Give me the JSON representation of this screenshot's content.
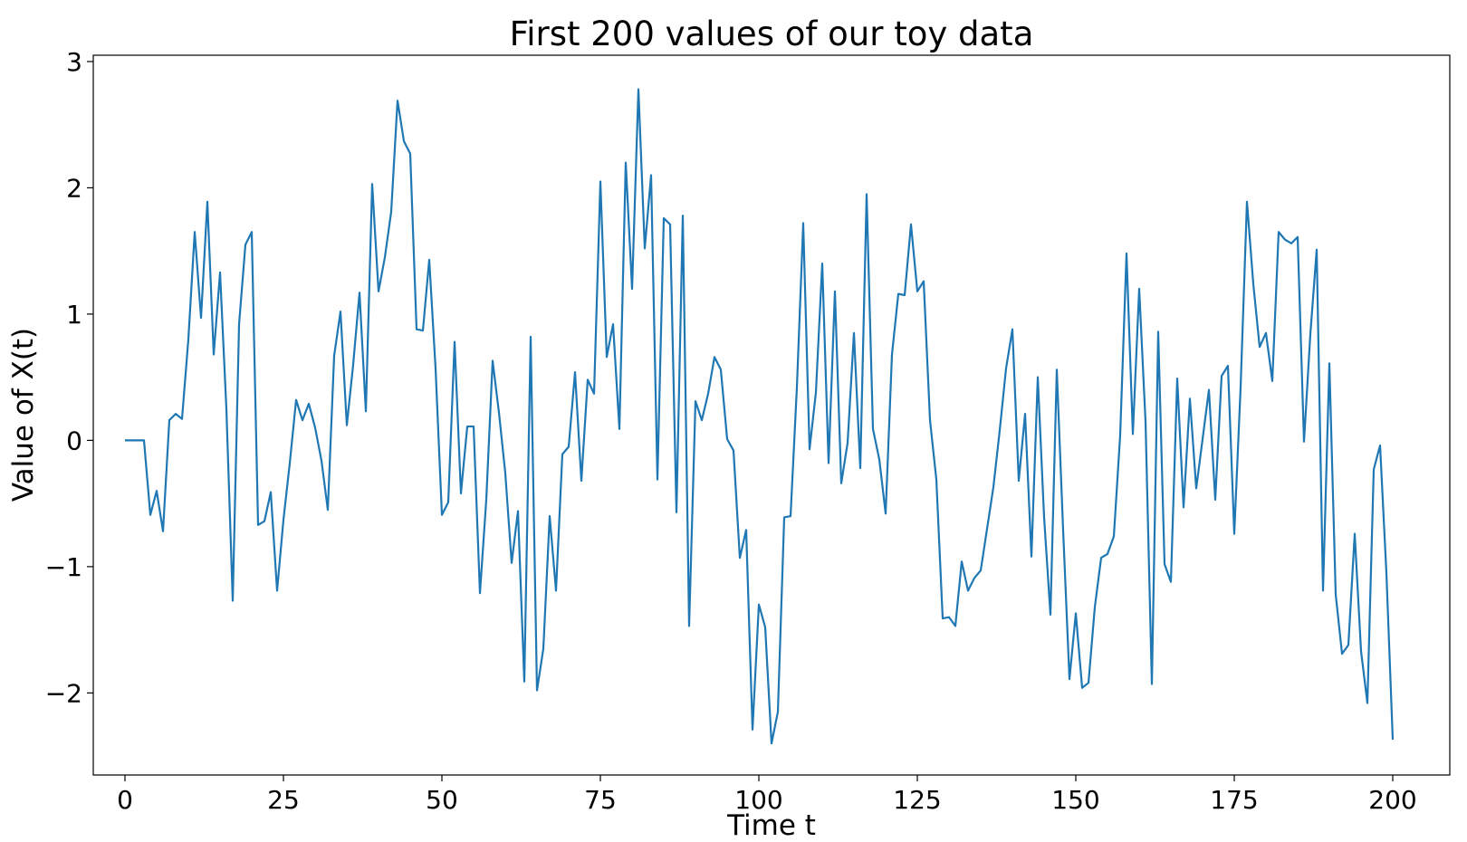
{
  "chart_data": {
    "type": "line",
    "title": "First 200 values of our toy data",
    "xlabel": "Time t",
    "ylabel": "Value of X(t)",
    "xlim": [
      -5,
      209
    ],
    "ylim": [
      -2.65,
      3.05
    ],
    "x_ticks": [
      {
        "value": 0,
        "label": "0"
      },
      {
        "value": 25,
        "label": "25"
      },
      {
        "value": 50,
        "label": "50"
      },
      {
        "value": 75,
        "label": "75"
      },
      {
        "value": 100,
        "label": "100"
      },
      {
        "value": 125,
        "label": "125"
      },
      {
        "value": 150,
        "label": "150"
      },
      {
        "value": 175,
        "label": "175"
      },
      {
        "value": 200,
        "label": "200"
      }
    ],
    "y_ticks": [
      {
        "value": -2,
        "label": "−2"
      },
      {
        "value": -1,
        "label": "−1"
      },
      {
        "value": 0,
        "label": "0"
      },
      {
        "value": 1,
        "label": "1"
      },
      {
        "value": 2,
        "label": "2"
      },
      {
        "value": 3,
        "label": "3"
      }
    ],
    "grid": false,
    "color": "#1f77b4",
    "series": [
      {
        "x_start": 0,
        "x_step": 1,
        "values": [
          0,
          0,
          0,
          0,
          -0.59,
          -0.4,
          -0.72,
          0.16,
          0.21,
          0.17,
          0.8,
          1.65,
          0.97,
          1.89,
          0.68,
          1.33,
          0.25,
          -1.27,
          0.92,
          1.55,
          1.65,
          -0.67,
          -0.64,
          -0.41,
          -1.19,
          -0.63,
          -0.18,
          0.32,
          0.16,
          0.29,
          0.1,
          -0.16,
          -0.55,
          0.67,
          1.02,
          0.12,
          0.6,
          1.17,
          0.23,
          2.03,
          1.18,
          1.45,
          1.81,
          2.69,
          2.37,
          2.27,
          0.88,
          0.87,
          1.43,
          0.57,
          -0.59,
          -0.49,
          0.78,
          -0.42,
          0.11,
          0.11,
          -1.21,
          -0.47,
          0.63,
          0.22,
          -0.26,
          -0.97,
          -0.56,
          -1.91,
          0.82,
          -1.98,
          -1.65,
          -0.6,
          -1.19,
          -0.11,
          -0.05,
          0.54,
          -0.32,
          0.48,
          0.37,
          2.05,
          0.66,
          0.92,
          0.09,
          2.2,
          1.2,
          2.78,
          1.52,
          2.1,
          -0.31,
          1.76,
          1.71,
          -0.57,
          1.78,
          -1.47,
          0.31,
          0.16,
          0.37,
          0.66,
          0.56,
          0.01,
          -0.08,
          -0.93,
          -0.71,
          -2.29,
          -1.3,
          -1.48,
          -2.4,
          -2.15,
          -0.61,
          -0.6,
          0.42,
          1.72,
          -0.07,
          0.38,
          1.4,
          -0.18,
          1.18,
          -0.34,
          -0.02,
          0.85,
          -0.22,
          1.95,
          0.09,
          -0.15,
          -0.58,
          0.68,
          1.16,
          1.15,
          1.71,
          1.18,
          1.26,
          0.16,
          -0.31,
          -1.41,
          -1.4,
          -1.47,
          -0.96,
          -1.19,
          -1.09,
          -1.03,
          -0.7,
          -0.37,
          0.08,
          0.57,
          0.88,
          -0.32,
          0.21,
          -0.92,
          0.5,
          -0.61,
          -1.38,
          0.56,
          -0.71,
          -1.89,
          -1.37,
          -1.96,
          -1.92,
          -1.32,
          -0.93,
          -0.9,
          -0.76,
          0.04,
          1.48,
          0.05,
          1.2,
          0.15,
          -1.93,
          0.86,
          -0.98,
          -1.12,
          0.49,
          -0.53,
          0.33,
          -0.38,
          0.01,
          0.4,
          -0.47,
          0.51,
          0.59,
          -0.74,
          0.42,
          1.89,
          1.24,
          0.74,
          0.85,
          0.47,
          1.65,
          1.59,
          1.56,
          1.61,
          -0.01,
          0.84,
          1.51,
          -1.19,
          0.61,
          -1.22,
          -1.69,
          -1.62,
          -0.74,
          -1.67,
          -2.08,
          -0.23,
          -0.04,
          -1.05,
          -2.37
        ]
      }
    ]
  }
}
